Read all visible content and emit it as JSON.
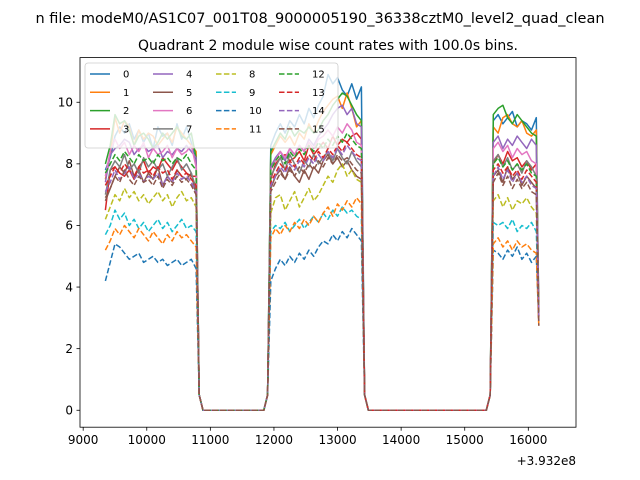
{
  "figure": {
    "suptitle": "n file: modeM0/AS1C07_001T08_9000005190_36338cztM0_level2_quad_clean",
    "title": "Quadrant 2 module wise count rates with 100.0s bins.",
    "offset_label": "+3.932e8"
  },
  "chart_data": {
    "type": "line",
    "title": "Quadrant 2 module wise count rates with 100.0s bins.",
    "xlabel": "",
    "ylabel": "",
    "x_offset_label": "+3.932e8",
    "xlim": [
      8950,
      16750
    ],
    "ylim": [
      -0.55,
      11.45
    ],
    "xticks": [
      9000,
      10000,
      11000,
      12000,
      13000,
      14000,
      15000,
      16000
    ],
    "yticks": [
      0,
      2,
      4,
      6,
      8,
      10
    ],
    "grid": false,
    "legend": {
      "position": "top-left",
      "columns": 4
    },
    "segments": [
      {
        "x0": 9350,
        "count": 20
      },
      {
        "x0": 11950,
        "count": 24
      },
      {
        "x0": 15450,
        "count": 11
      }
    ],
    "series": [
      {
        "name": "0",
        "color": "#1f77b4",
        "dash": "solid",
        "profile": [
          7.8,
          8.2,
          8.9,
          9.2,
          9.0,
          9.3,
          8.8,
          9.1,
          8.7,
          9.0,
          8.5,
          9.2,
          8.9,
          9.0,
          8.6,
          9.3,
          8.8,
          9.2,
          8.7,
          8.0
        ],
        "high": [
          8.6,
          9.0,
          9.3,
          9.0,
          9.4,
          9.2,
          9.6,
          9.3,
          9.8,
          9.5,
          9.9,
          10.2,
          10.9,
          10.6,
          10.8,
          10.4,
          10.2,
          10.6,
          10.1,
          10.5
        ],
        "third": [
          9.4,
          9.6,
          9.3,
          9.5,
          9.7,
          9.2,
          9.4,
          9.3,
          9.1,
          9.5
        ]
      },
      {
        "name": "1",
        "color": "#ff7f0e",
        "dash": "solid",
        "profile": [
          7.5,
          8.3,
          9.5,
          9.0,
          9.4,
          9.2,
          8.6,
          9.1,
          8.8,
          9.0,
          8.9,
          8.6,
          8.8,
          9.0,
          8.7,
          9.2,
          9.0,
          8.8,
          8.6,
          8.4
        ],
        "high": [
          8.3,
          8.6,
          8.9,
          8.7,
          8.9,
          8.6,
          9.0,
          8.8,
          9.3,
          9.0,
          9.4,
          9.7,
          9.9,
          10.1,
          10.2,
          9.8,
          10.3,
          9.8,
          9.2,
          9.4
        ],
        "third": [
          9.2,
          9.0,
          9.5,
          9.6,
          9.3,
          9.2,
          9.4,
          9.0,
          8.9,
          9.1
        ]
      },
      {
        "name": "2",
        "color": "#2ca02c",
        "dash": "solid",
        "profile": [
          8.0,
          8.6,
          9.6,
          9.3,
          9.4,
          9.1,
          8.6,
          8.9,
          9.0,
          8.8,
          8.5,
          8.7,
          9.0,
          8.8,
          9.0,
          9.2,
          8.9,
          8.8,
          9.0,
          8.2
        ],
        "high": [
          8.4,
          8.7,
          9.0,
          8.8,
          9.2,
          8.9,
          9.1,
          9.0,
          9.2,
          9.0,
          9.1,
          9.4,
          9.6,
          9.9,
          10.1,
          10.3,
          10.2,
          9.9,
          9.6,
          9.4
        ],
        "third": [
          9.6,
          9.8,
          9.9,
          9.5,
          9.3,
          9.6,
          9.4,
          9.2,
          9.0,
          8.9
        ]
      },
      {
        "name": "3",
        "color": "#d62728",
        "dash": "solid",
        "profile": [
          6.5,
          7.8,
          7.9,
          7.7,
          7.6,
          7.8,
          7.5,
          7.9,
          8.1,
          7.7,
          7.9,
          7.8,
          8.2,
          8.0,
          7.8,
          8.1,
          7.9,
          7.7,
          7.6,
          7.6
        ],
        "high": [
          7.5,
          8.0,
          8.2,
          8.3,
          8.1,
          8.2,
          8.4,
          8.1,
          8.6,
          8.3,
          8.5,
          8.7,
          8.5,
          8.9,
          8.6,
          8.8,
          8.7,
          8.9,
          9.0,
          8.8
        ],
        "third": [
          8.0,
          8.3,
          8.0,
          8.4,
          8.1,
          8.2,
          7.9,
          8.1,
          7.8,
          8.0
        ]
      },
      {
        "name": "4",
        "color": "#9467bd",
        "dash": "solid",
        "profile": [
          7.4,
          8.3,
          8.5,
          8.6,
          8.8,
          8.7,
          8.3,
          8.5,
          8.6,
          8.4,
          8.5,
          8.6,
          8.2,
          8.4,
          8.3,
          8.5,
          8.4,
          8.6,
          8.4,
          8.2
        ],
        "high": [
          7.9,
          8.2,
          8.4,
          8.1,
          8.5,
          8.3,
          8.6,
          8.4,
          8.8,
          8.6,
          8.9,
          9.1,
          9.3,
          9.6,
          9.8,
          9.9,
          9.6,
          9.8,
          9.3,
          9.2
        ],
        "third": [
          8.7,
          8.9,
          8.5,
          8.8,
          8.6,
          8.9,
          8.7,
          8.5,
          8.8,
          8.6
        ]
      },
      {
        "name": "5",
        "color": "#8c564b",
        "dash": "solid",
        "profile": [
          6.8,
          7.2,
          7.6,
          7.9,
          7.7,
          8.1,
          7.6,
          7.8,
          7.4,
          7.7,
          7.5,
          7.9,
          7.3,
          7.6,
          7.4,
          7.8,
          7.6,
          7.5,
          7.7,
          7.0
        ],
        "high": [
          7.2,
          7.6,
          7.8,
          7.5,
          7.9,
          7.6,
          7.4,
          7.8,
          7.5,
          7.9,
          7.7,
          8.1,
          8.3,
          8.0,
          8.2,
          7.9,
          8.1,
          7.8,
          7.6,
          7.5
        ],
        "third": [
          7.6,
          7.8,
          7.4,
          7.9,
          7.5,
          7.7,
          7.3,
          7.6,
          7.4,
          7.2
        ]
      },
      {
        "name": "6",
        "color": "#e377c2",
        "dash": "solid",
        "profile": [
          7.6,
          8.4,
          8.8,
          8.5,
          8.7,
          8.3,
          8.6,
          8.4,
          8.7,
          8.2,
          8.5,
          8.3,
          8.4,
          8.6,
          8.2,
          8.5,
          8.3,
          8.4,
          8.6,
          7.9
        ],
        "high": [
          7.8,
          8.1,
          8.4,
          8.2,
          8.5,
          8.3,
          8.6,
          8.4,
          8.7,
          8.5,
          8.8,
          8.9,
          9.1,
          8.9,
          9.2,
          9.0,
          9.3,
          9.1,
          8.7,
          8.6
        ],
        "third": [
          8.5,
          8.7,
          8.4,
          8.6,
          8.2,
          8.5,
          8.3,
          8.4,
          8.1,
          8.0
        ]
      },
      {
        "name": "7",
        "color": "#7f7f7f",
        "dash": "solid",
        "profile": [
          7.0,
          7.8,
          8.1,
          7.9,
          8.3,
          7.8,
          8.0,
          7.7,
          8.2,
          7.9,
          8.1,
          7.8,
          8.0,
          7.6,
          7.9,
          8.2,
          7.8,
          8.0,
          7.7,
          7.2
        ],
        "high": [
          7.6,
          7.9,
          8.2,
          7.8,
          8.3,
          8.0,
          7.7,
          8.1,
          7.9,
          8.3,
          8.0,
          8.2,
          8.4,
          8.1,
          8.5,
          8.2,
          8.0,
          8.4,
          8.1,
          7.9
        ],
        "third": [
          8.1,
          8.3,
          7.9,
          8.2,
          7.8,
          8.0,
          7.7,
          8.1,
          7.9,
          7.6
        ]
      },
      {
        "name": "8",
        "color": "#bcbd22",
        "dash": "dashed",
        "profile": [
          6.2,
          6.6,
          7.0,
          6.8,
          7.2,
          6.9,
          7.1,
          6.8,
          7.0,
          6.7,
          6.9,
          7.1,
          6.8,
          7.0,
          6.6,
          6.9,
          7.1,
          6.8,
          6.9,
          6.6
        ],
        "high": [
          6.4,
          6.9,
          7.0,
          6.5,
          6.8,
          7.1,
          6.6,
          6.9,
          7.2,
          6.8,
          7.0,
          7.3,
          7.6,
          7.4,
          7.8,
          8.0,
          7.6,
          7.8,
          7.5,
          7.4
        ],
        "third": [
          6.8,
          7.0,
          6.6,
          6.9,
          6.5,
          6.8,
          6.7,
          6.9,
          6.6,
          6.4
        ]
      },
      {
        "name": "9",
        "color": "#17becf",
        "dash": "dashed",
        "profile": [
          5.7,
          6.0,
          6.5,
          6.2,
          6.4,
          6.0,
          6.2,
          5.9,
          6.1,
          5.8,
          6.0,
          6.2,
          5.9,
          6.1,
          5.8,
          6.0,
          6.2,
          5.9,
          6.0,
          5.8
        ],
        "high": [
          5.8,
          6.0,
          5.9,
          6.1,
          5.8,
          6.0,
          6.2,
          5.9,
          6.1,
          6.3,
          6.1,
          6.4,
          6.2,
          6.5,
          6.3,
          6.6,
          6.4,
          6.5,
          6.3,
          6.2
        ],
        "third": [
          6.1,
          6.0,
          6.1,
          5.9,
          6.2,
          5.8,
          6.0,
          5.9,
          6.1,
          5.8
        ]
      },
      {
        "name": "10",
        "color": "#1f77b4",
        "dash": "dashed",
        "profile": [
          4.2,
          4.8,
          5.4,
          5.3,
          5.1,
          4.9,
          5.0,
          5.1,
          4.8,
          4.9,
          5.0,
          4.8,
          4.9,
          4.7,
          4.8,
          4.9,
          4.7,
          4.8,
          4.9,
          4.6
        ],
        "high": [
          4.2,
          4.6,
          4.9,
          4.7,
          5.0,
          4.8,
          5.1,
          4.9,
          5.2,
          5.0,
          5.3,
          5.5,
          5.4,
          5.7,
          5.5,
          5.8,
          5.6,
          5.9,
          5.7,
          5.5
        ],
        "third": [
          5.2,
          5.1,
          4.9,
          5.2,
          5.0,
          5.3,
          4.9,
          5.1,
          4.8,
          5.0
        ]
      },
      {
        "name": "11",
        "color": "#ff7f0e",
        "dash": "dashed",
        "profile": [
          5.2,
          5.5,
          5.9,
          5.7,
          6.0,
          5.8,
          5.6,
          5.9,
          5.7,
          5.5,
          5.8,
          5.6,
          5.4,
          5.7,
          5.5,
          5.8,
          5.6,
          5.7,
          5.5,
          5.3
        ],
        "high": [
          5.6,
          5.9,
          5.7,
          6.0,
          5.8,
          6.1,
          5.9,
          6.2,
          6.0,
          6.3,
          6.1,
          6.4,
          6.6,
          6.3,
          6.7,
          6.5,
          6.8,
          6.6,
          6.9,
          6.7
        ],
        "third": [
          5.4,
          5.6,
          5.3,
          5.5,
          5.2,
          5.5,
          5.3,
          5.4,
          5.2,
          5.1
        ]
      },
      {
        "name": "12",
        "color": "#2ca02c",
        "dash": "dashed",
        "profile": [
          7.7,
          8.0,
          8.3,
          8.1,
          8.4,
          8.2,
          8.0,
          8.3,
          8.1,
          8.2,
          8.0,
          8.3,
          8.1,
          8.2,
          8.0,
          8.2,
          8.1,
          8.3,
          8.0,
          7.8
        ],
        "high": [
          7.8,
          8.1,
          8.3,
          8.0,
          8.4,
          8.2,
          8.5,
          8.3,
          8.6,
          8.4,
          8.7,
          8.5,
          8.8,
          8.6,
          8.9,
          8.7,
          9.0,
          8.8,
          8.6,
          8.5
        ],
        "third": [
          8.0,
          8.2,
          7.9,
          8.1,
          7.8,
          8.0,
          7.8,
          8.0,
          7.7,
          7.6
        ]
      },
      {
        "name": "13",
        "color": "#d62728",
        "dash": "dashed",
        "profile": [
          7.3,
          7.6,
          7.9,
          7.7,
          8.0,
          7.8,
          7.6,
          7.9,
          7.7,
          7.8,
          7.6,
          7.9,
          7.7,
          7.8,
          7.5,
          7.8,
          7.6,
          7.7,
          7.5,
          7.3
        ],
        "high": [
          7.4,
          7.7,
          8.0,
          7.8,
          8.1,
          7.9,
          8.2,
          8.0,
          8.3,
          8.1,
          8.4,
          8.2,
          8.5,
          8.3,
          8.6,
          8.4,
          8.7,
          8.5,
          8.3,
          8.2
        ],
        "third": [
          7.8,
          8.0,
          7.7,
          7.9,
          7.6,
          7.8,
          7.5,
          7.8,
          7.6,
          7.4
        ]
      },
      {
        "name": "14",
        "color": "#9467bd",
        "dash": "dashed",
        "profile": [
          7.1,
          7.4,
          7.8,
          7.5,
          7.7,
          7.9,
          7.5,
          7.7,
          7.4,
          7.6,
          7.5,
          7.7,
          7.3,
          7.6,
          7.4,
          7.7,
          7.5,
          7.6,
          7.4,
          7.1
        ],
        "high": [
          7.3,
          7.6,
          7.9,
          7.7,
          8.0,
          7.8,
          8.1,
          7.9,
          8.2,
          8.0,
          8.3,
          8.1,
          8.4,
          8.2,
          8.5,
          8.3,
          8.6,
          8.4,
          8.2,
          8.1
        ],
        "third": [
          7.6,
          7.9,
          7.5,
          7.8,
          7.4,
          7.7,
          7.4,
          7.6,
          7.3,
          7.2
        ]
      },
      {
        "name": "15",
        "color": "#8c564b",
        "dash": "dashed",
        "profile": [
          6.9,
          7.2,
          7.6,
          7.4,
          7.8,
          7.5,
          7.3,
          7.6,
          7.4,
          7.5,
          7.3,
          7.6,
          7.2,
          7.5,
          7.3,
          7.6,
          7.4,
          7.5,
          7.3,
          7.0
        ],
        "high": [
          7.1,
          7.4,
          7.7,
          7.5,
          7.8,
          7.6,
          7.9,
          7.7,
          8.0,
          7.8,
          8.1,
          7.9,
          8.2,
          8.0,
          8.3,
          8.1,
          8.2,
          8.0,
          7.8,
          7.7
        ],
        "third": [
          7.4,
          7.7,
          7.3,
          7.6,
          7.2,
          7.5,
          7.2,
          7.4,
          7.1,
          7.0
        ]
      }
    ]
  }
}
